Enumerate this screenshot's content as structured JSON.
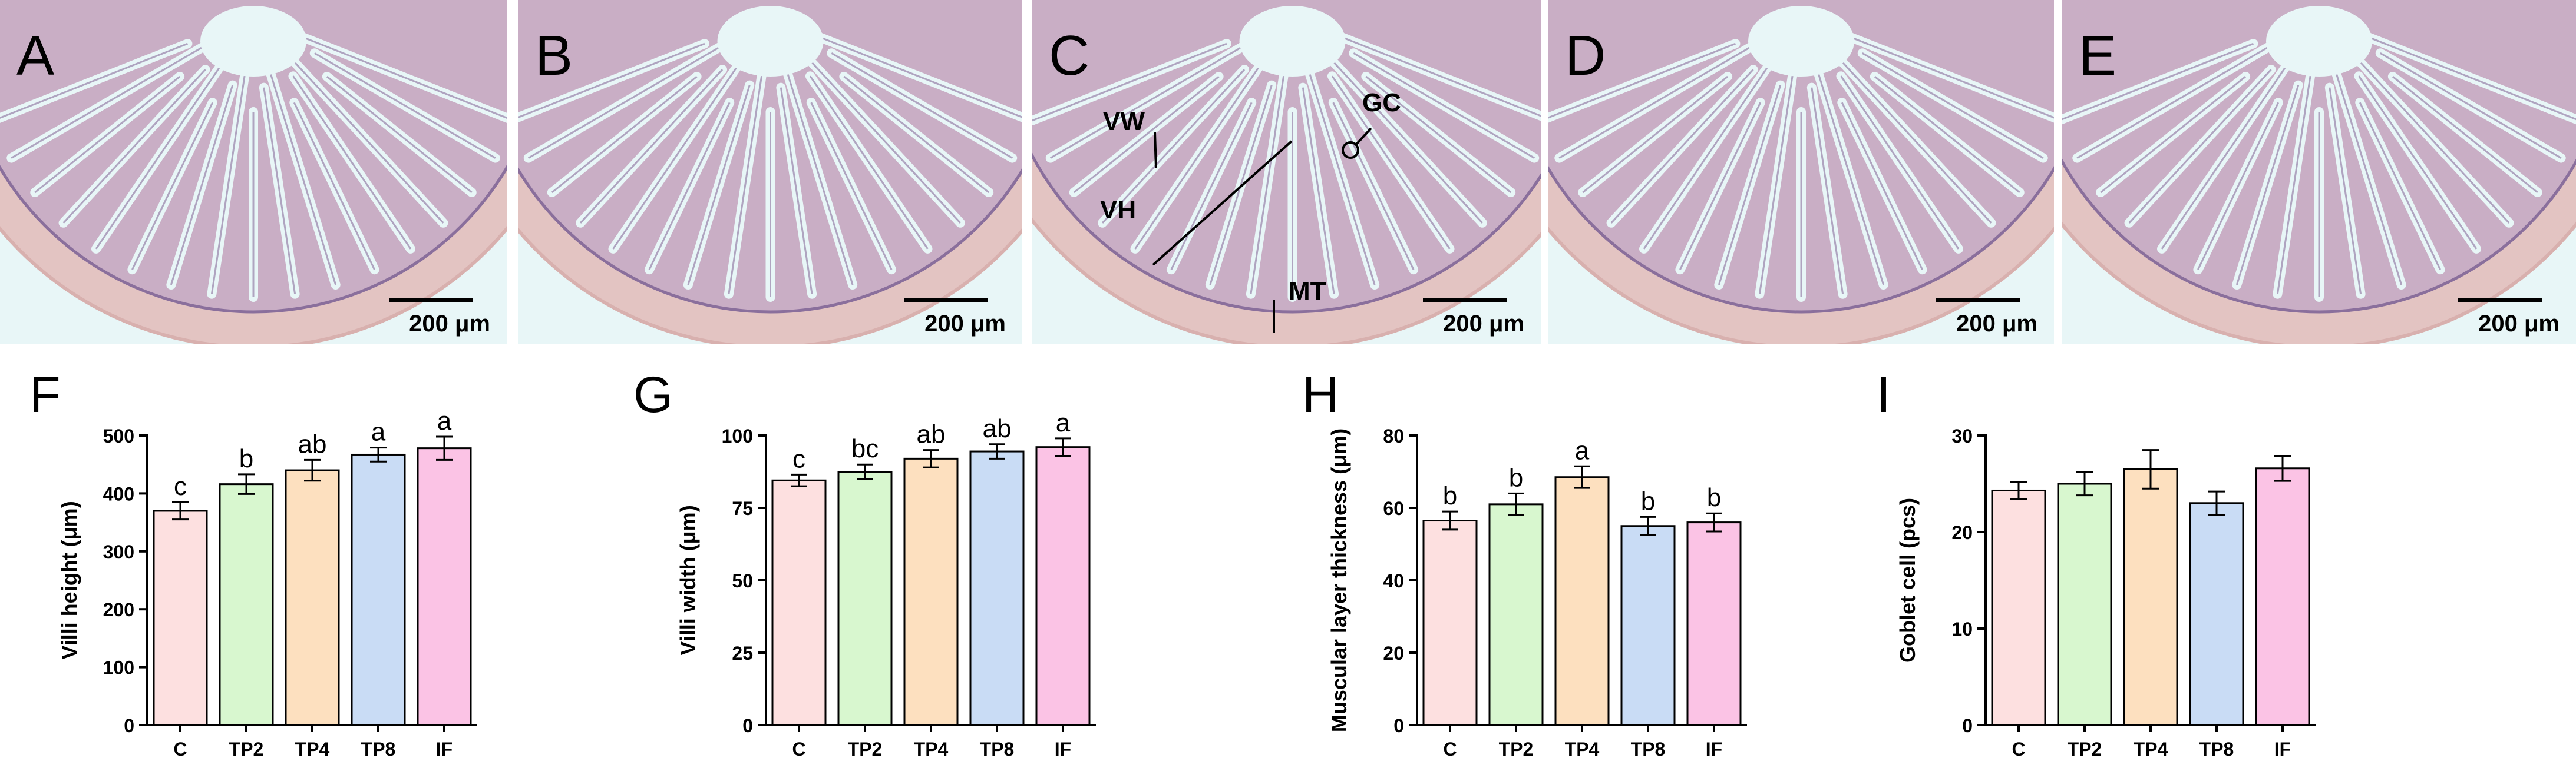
{
  "micrographs": [
    {
      "letter": "A",
      "scale": "200 μm"
    },
    {
      "letter": "B",
      "scale": "200 μm"
    },
    {
      "letter": "C",
      "scale": "200 μm",
      "annotations": [
        "VW",
        "VH",
        "GC",
        "MT"
      ]
    },
    {
      "letter": "D",
      "scale": "200 μm"
    },
    {
      "letter": "E",
      "scale": "200 μm"
    }
  ],
  "colors": {
    "tissue_stroke": "#8a6f9c",
    "tissue_fill": "#c9aec5",
    "muscle_fill": "#e3c4c2",
    "background": "#e8f6f7"
  },
  "chart_data": [
    {
      "letter": "F",
      "type": "bar",
      "categories": [
        "C",
        "TP2",
        "TP4",
        "TP8",
        "IF"
      ],
      "values": [
        370,
        416,
        440,
        467,
        478
      ],
      "errors": [
        15,
        17,
        18,
        12,
        20
      ],
      "labels": [
        "c",
        "b",
        "ab",
        "a",
        "a"
      ],
      "ylabel": "Villi height (μm)",
      "ylim": [
        0,
        500
      ],
      "yticks": [
        0,
        100,
        200,
        300,
        400,
        500
      ]
    },
    {
      "letter": "G",
      "type": "bar",
      "categories": [
        "C",
        "TP2",
        "TP4",
        "TP8",
        "IF"
      ],
      "values": [
        84.5,
        87.5,
        92,
        94.5,
        96
      ],
      "errors": [
        2,
        2.5,
        3,
        2.5,
        3
      ],
      "labels": [
        "c",
        "bc",
        "ab",
        "ab",
        "a"
      ],
      "ylabel": "Villi width (μm)",
      "ylim": [
        0,
        100
      ],
      "yticks": [
        0,
        25,
        50,
        75,
        100
      ]
    },
    {
      "letter": "H",
      "type": "bar",
      "categories": [
        "C",
        "TP2",
        "TP4",
        "TP8",
        "IF"
      ],
      "values": [
        56.5,
        61,
        68.5,
        55,
        56
      ],
      "errors": [
        2.5,
        3,
        3,
        2.5,
        2.5
      ],
      "labels": [
        "b",
        "b",
        "a",
        "b",
        "b"
      ],
      "ylabel": "Muscular layer thickness (μm)",
      "ylim": [
        0,
        80
      ],
      "yticks": [
        0,
        20,
        40,
        60,
        80
      ]
    },
    {
      "letter": "I",
      "type": "bar",
      "categories": [
        "C",
        "TP2",
        "TP4",
        "TP8",
        "IF"
      ],
      "values": [
        24.3,
        25,
        26.5,
        23,
        26.6
      ],
      "errors": [
        0.9,
        1.2,
        2,
        1.2,
        1.3
      ],
      "labels": [
        "",
        "",
        "",
        "",
        ""
      ],
      "ylabel": "Goblet cell (pcs)",
      "ylim": [
        0,
        30
      ],
      "yticks": [
        0,
        10,
        20,
        30
      ]
    }
  ],
  "bar_colors": [
    "#fde0e0",
    "#d8f7cf",
    "#fde0bf",
    "#c9dcf5",
    "#fbc3e5"
  ]
}
